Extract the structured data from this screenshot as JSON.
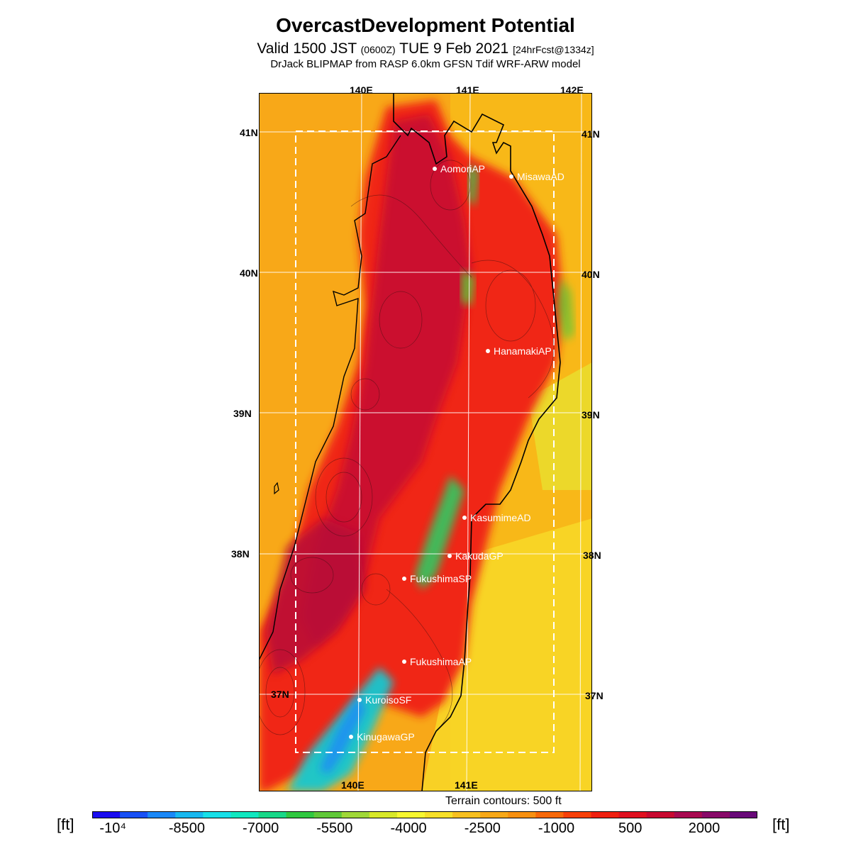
{
  "title": "OvercastDevelopment Potential",
  "subtitle": {
    "valid": "Valid 1500 JST",
    "utc": "(0600Z)",
    "date": "TUE 9 Feb 2021",
    "fcst": "[24hrFcst@1334z]"
  },
  "model_line": "DrJack BLIPMAP from RASP 6.0km GFSN Tdif WRF-ARW model",
  "map": {
    "lon_labels": [
      "140E",
      "141E",
      "142E"
    ],
    "lat_labels": [
      "41N",
      "40N",
      "39N",
      "38N",
      "37N"
    ],
    "stations": [
      "AomoriAP",
      "MisawaAD",
      "HanamakiAP",
      "KasumimeAD",
      "KakudaGP",
      "FukushimaSP",
      "FukushimaAP",
      "KuroisoSF",
      "KinugawaGP"
    ]
  },
  "terrain_note": "Terrain contours: 500 ft",
  "colorbar": {
    "unit": "[ft]",
    "colors": [
      "#1a0cf0",
      "#1850f5",
      "#1a88f8",
      "#18b8f0",
      "#18e0e8",
      "#10e8c0",
      "#18d888",
      "#30c840",
      "#60c838",
      "#a0d838",
      "#d8e828",
      "#f8f830",
      "#f8e028",
      "#f8c020",
      "#f8a818",
      "#f89010",
      "#f86808",
      "#f84008",
      "#f02010",
      "#e01020",
      "#c80830",
      "#a80850",
      "#880868",
      "#680878"
    ],
    "tick_labels": [
      "-10⁴",
      "-8500",
      "-7000",
      "-5500",
      "-4000",
      "-2500",
      "-1000",
      "500",
      "2000"
    ]
  }
}
